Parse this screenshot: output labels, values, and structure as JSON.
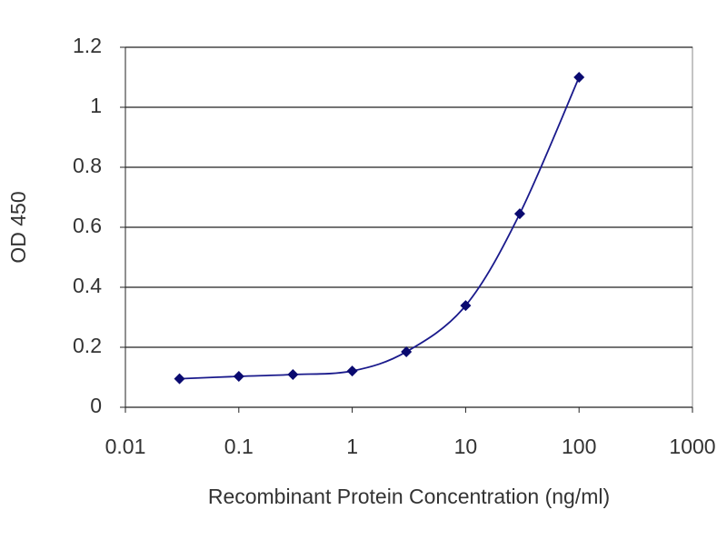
{
  "chart_data": {
    "type": "line",
    "x_label": "Recombinant Protein Concentration (ng/ml)",
    "y_label": "OD 450",
    "x": [
      0.03,
      0.1,
      0.3,
      1,
      3,
      10,
      30,
      100
    ],
    "series": [
      {
        "color": "#1a1a8c",
        "values": [
          0.095,
          0.103,
          0.109,
          0.121,
          0.185,
          0.339,
          0.645,
          1.1
        ]
      }
    ],
    "xscale": "log",
    "xlim": [
      0.01,
      1000
    ],
    "xticks": [
      0.01,
      0.1,
      1,
      10,
      100,
      1000
    ],
    "ylim": [
      0,
      1.2
    ],
    "yticks": [
      0,
      0.2,
      0.4,
      0.6,
      0.8,
      1,
      1.2
    ],
    "grid": true
  }
}
